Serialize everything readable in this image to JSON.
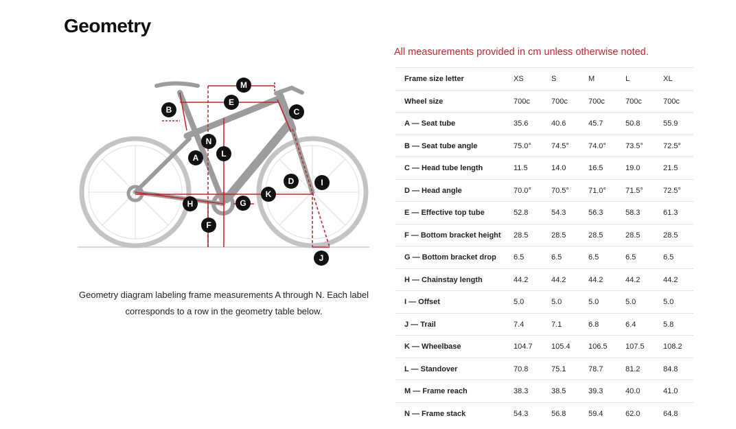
{
  "header": {
    "title": "Geometry"
  },
  "note": "All measurements provided in cm unless otherwise noted.",
  "diagram": {
    "labels": [
      "A",
      "B",
      "C",
      "D",
      "E",
      "F",
      "G",
      "H",
      "I",
      "J",
      "K",
      "L",
      "M",
      "N"
    ],
    "caption": "Geometry diagram labeling frame measurements A through N. Each label corresponds to a row in the geometry table below."
  },
  "table": {
    "rows": [
      [
        "Frame size letter",
        "XS",
        "S",
        "M",
        "L",
        "XL"
      ],
      [
        "Wheel size",
        "700c",
        "700c",
        "700c",
        "700c",
        "700c"
      ],
      [
        "A — Seat tube",
        "35.6",
        "40.6",
        "45.7",
        "50.8",
        "55.9"
      ],
      [
        "B — Seat tube angle",
        "75.0°",
        "74.5°",
        "74.0°",
        "73.5°",
        "72.5°"
      ],
      [
        "C — Head tube length",
        "11.5",
        "14.0",
        "16.5",
        "19.0",
        "21.5"
      ],
      [
        "D — Head angle",
        "70.0°",
        "70.5°",
        "71.0°",
        "71.5°",
        "72.5°"
      ],
      [
        "E — Effective top tube",
        "52.8",
        "54.3",
        "56.3",
        "58.3",
        "61.3"
      ],
      [
        "F — Bottom bracket height",
        "28.5",
        "28.5",
        "28.5",
        "28.5",
        "28.5"
      ],
      [
        "G — Bottom bracket drop",
        "6.5",
        "6.5",
        "6.5",
        "6.5",
        "6.5"
      ],
      [
        "H — Chainstay length",
        "44.2",
        "44.2",
        "44.2",
        "44.2",
        "44.2"
      ],
      [
        "I — Offset",
        "5.0",
        "5.0",
        "5.0",
        "5.0",
        "5.0"
      ],
      [
        "J — Trail",
        "7.4",
        "7.1",
        "6.8",
        "6.4",
        "5.8"
      ],
      [
        "K — Wheelbase",
        "104.7",
        "105.4",
        "106.5",
        "107.5",
        "108.2"
      ],
      [
        "L — Standover",
        "70.8",
        "75.1",
        "78.7",
        "81.2",
        "84.8"
      ],
      [
        "M — Frame reach",
        "38.3",
        "38.5",
        "39.3",
        "40.0",
        "41.0"
      ],
      [
        "N — Frame stack",
        "54.3",
        "56.8",
        "59.4",
        "62.0",
        "64.8"
      ]
    ]
  }
}
